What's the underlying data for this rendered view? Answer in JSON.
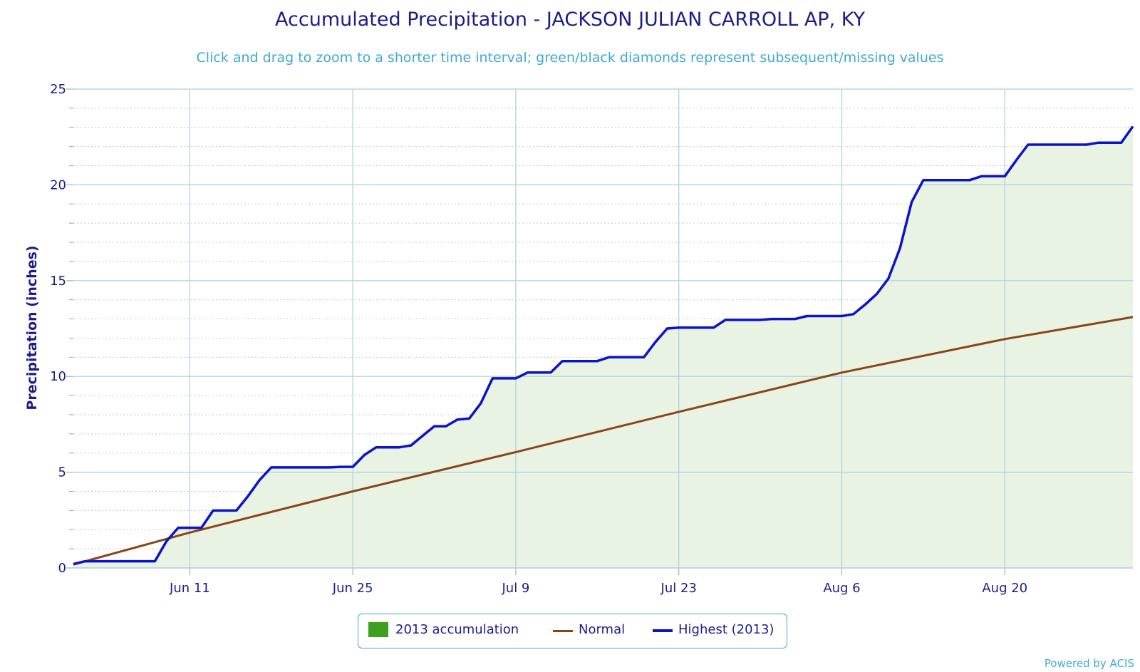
{
  "chart_data": {
    "type": "area",
    "title": "Accumulated Precipitation - JACKSON JULIAN CARROLL AP, KY",
    "subtitle": "Click and drag to zoom to a shorter time interval; green/black diamonds represent subsequent/missing values",
    "ylabel": "Precipitation (inches)",
    "xlabel": "",
    "ylim": [
      0,
      25
    ],
    "yticks": [
      "0",
      "5",
      "10",
      "15",
      "20",
      "25"
    ],
    "x_start": "2013-06-01",
    "x_end": "2013-08-31",
    "xticks": [
      {
        "date": "2013-06-11",
        "label": "Jun 11"
      },
      {
        "date": "2013-06-25",
        "label": "Jun 25"
      },
      {
        "date": "2013-07-09",
        "label": "Jul 9"
      },
      {
        "date": "2013-07-23",
        "label": "Jul 23"
      },
      {
        "date": "2013-08-06",
        "label": "Aug 6"
      },
      {
        "date": "2013-08-20",
        "label": "Aug 20"
      }
    ],
    "grid": true,
    "legend_position": "bottom-center",
    "series": [
      {
        "name": "2013 accumulation",
        "type": "area",
        "color": "#e9f3e3",
        "legend_color": "#3f9f1f",
        "points": [
          [
            "2013-06-01",
            0.2
          ],
          [
            "2013-06-02",
            0.35
          ],
          [
            "2013-06-03",
            0.35
          ],
          [
            "2013-06-04",
            0.35
          ],
          [
            "2013-06-05",
            0.35
          ],
          [
            "2013-06-06",
            0.35
          ],
          [
            "2013-06-07",
            0.35
          ],
          [
            "2013-06-08",
            0.35
          ],
          [
            "2013-06-09",
            1.4
          ],
          [
            "2013-06-10",
            2.1
          ],
          [
            "2013-06-11",
            2.1
          ],
          [
            "2013-06-12",
            2.1
          ],
          [
            "2013-06-13",
            3.0
          ],
          [
            "2013-06-14",
            3.0
          ],
          [
            "2013-06-15",
            3.0
          ],
          [
            "2013-06-16",
            3.75
          ],
          [
            "2013-06-17",
            4.6
          ],
          [
            "2013-06-18",
            5.25
          ],
          [
            "2013-06-19",
            5.25
          ],
          [
            "2013-06-20",
            5.25
          ],
          [
            "2013-06-21",
            5.25
          ],
          [
            "2013-06-22",
            5.25
          ],
          [
            "2013-06-23",
            5.25
          ],
          [
            "2013-06-24",
            5.28
          ],
          [
            "2013-06-25",
            5.28
          ],
          [
            "2013-06-26",
            5.9
          ],
          [
            "2013-06-27",
            6.3
          ],
          [
            "2013-06-28",
            6.3
          ],
          [
            "2013-06-29",
            6.3
          ],
          [
            "2013-06-30",
            6.4
          ],
          [
            "2013-07-01",
            6.9
          ],
          [
            "2013-07-02",
            7.4
          ],
          [
            "2013-07-03",
            7.4
          ],
          [
            "2013-07-04",
            7.75
          ],
          [
            "2013-07-05",
            7.8
          ],
          [
            "2013-07-06",
            8.6
          ],
          [
            "2013-07-07",
            9.9
          ],
          [
            "2013-07-08",
            9.9
          ],
          [
            "2013-07-09",
            9.9
          ],
          [
            "2013-07-10",
            10.2
          ],
          [
            "2013-07-11",
            10.2
          ],
          [
            "2013-07-12",
            10.2
          ],
          [
            "2013-07-13",
            10.8
          ],
          [
            "2013-07-14",
            10.8
          ],
          [
            "2013-07-15",
            10.8
          ],
          [
            "2013-07-16",
            10.8
          ],
          [
            "2013-07-17",
            11.0
          ],
          [
            "2013-07-18",
            11.0
          ],
          [
            "2013-07-19",
            11.0
          ],
          [
            "2013-07-20",
            11.0
          ],
          [
            "2013-07-21",
            11.8
          ],
          [
            "2013-07-22",
            12.5
          ],
          [
            "2013-07-23",
            12.55
          ],
          [
            "2013-07-24",
            12.55
          ],
          [
            "2013-07-25",
            12.55
          ],
          [
            "2013-07-26",
            12.55
          ],
          [
            "2013-07-27",
            12.95
          ],
          [
            "2013-07-28",
            12.95
          ],
          [
            "2013-07-29",
            12.95
          ],
          [
            "2013-07-30",
            12.95
          ],
          [
            "2013-07-31",
            13.0
          ],
          [
            "2013-08-01",
            13.0
          ],
          [
            "2013-08-02",
            13.0
          ],
          [
            "2013-08-03",
            13.15
          ],
          [
            "2013-08-04",
            13.15
          ],
          [
            "2013-08-05",
            13.15
          ],
          [
            "2013-08-06",
            13.15
          ],
          [
            "2013-08-07",
            13.25
          ],
          [
            "2013-08-08",
            13.75
          ],
          [
            "2013-08-09",
            14.3
          ],
          [
            "2013-08-10",
            15.1
          ],
          [
            "2013-08-11",
            16.7
          ],
          [
            "2013-08-12",
            19.1
          ],
          [
            "2013-08-13",
            20.25
          ],
          [
            "2013-08-14",
            20.25
          ],
          [
            "2013-08-15",
            20.25
          ],
          [
            "2013-08-16",
            20.25
          ],
          [
            "2013-08-17",
            20.25
          ],
          [
            "2013-08-18",
            20.45
          ],
          [
            "2013-08-19",
            20.45
          ],
          [
            "2013-08-20",
            20.45
          ],
          [
            "2013-08-21",
            21.3
          ],
          [
            "2013-08-22",
            22.1
          ],
          [
            "2013-08-23",
            22.1
          ],
          [
            "2013-08-24",
            22.1
          ],
          [
            "2013-08-25",
            22.1
          ],
          [
            "2013-08-26",
            22.1
          ],
          [
            "2013-08-27",
            22.1
          ],
          [
            "2013-08-28",
            22.2
          ],
          [
            "2013-08-29",
            22.2
          ],
          [
            "2013-08-30",
            22.2
          ],
          [
            "2013-08-31",
            23.05
          ]
        ]
      },
      {
        "name": "Normal",
        "type": "line",
        "color": "#8b4513",
        "points": [
          [
            "2013-06-01",
            0.18
          ],
          [
            "2013-06-11",
            1.85
          ],
          [
            "2013-06-25",
            4.0
          ],
          [
            "2013-07-09",
            6.05
          ],
          [
            "2013-07-23",
            8.15
          ],
          [
            "2013-08-06",
            10.2
          ],
          [
            "2013-08-20",
            11.95
          ],
          [
            "2013-08-31",
            13.1
          ]
        ]
      },
      {
        "name": "Highest (2013)",
        "type": "line",
        "color": "#0a14c8",
        "same_as": "2013 accumulation"
      }
    ]
  },
  "legend": {
    "items": [
      {
        "label": "2013 accumulation",
        "color": "#3f9f1f"
      },
      {
        "label": "Normal",
        "color": "#8b4513"
      },
      {
        "label": "Highest (2013)",
        "color": "#0a14c8"
      }
    ]
  },
  "credit": "Powered by ACIS"
}
